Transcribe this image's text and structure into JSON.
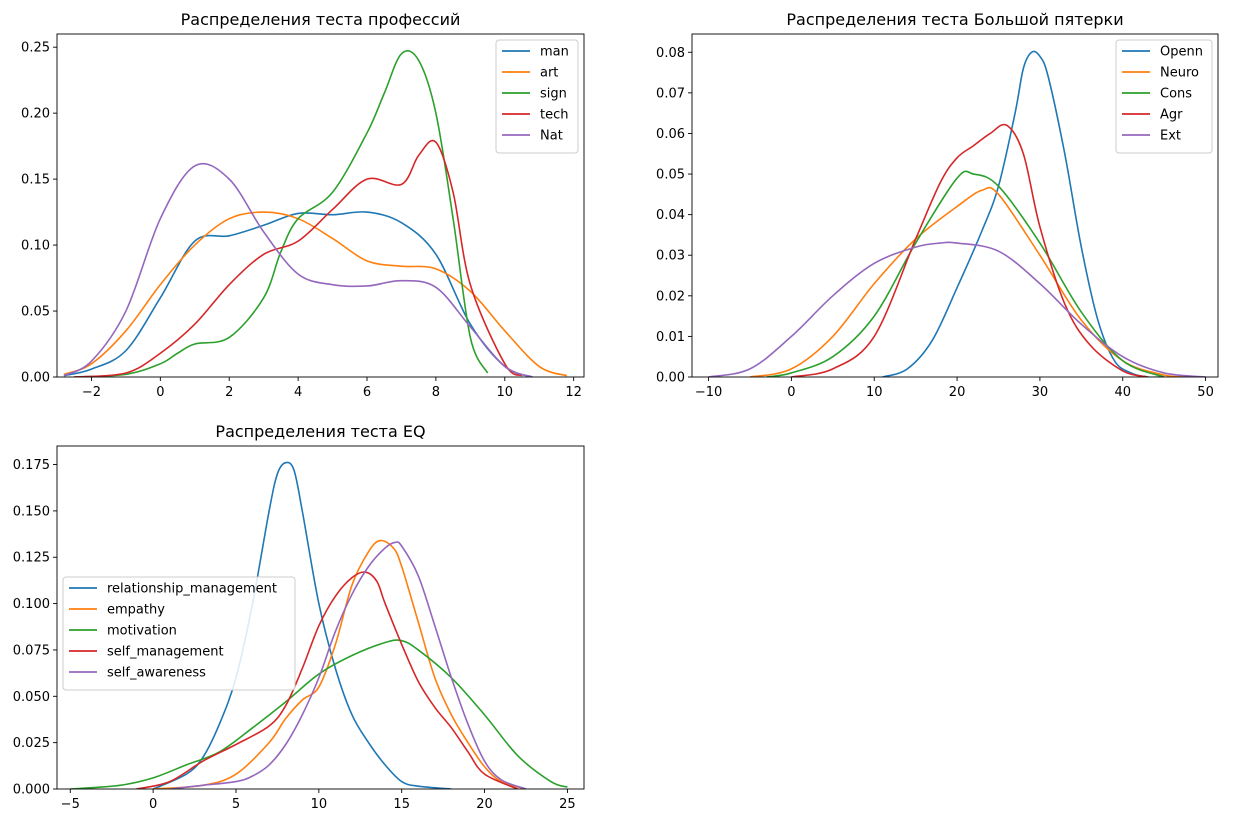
{
  "chart_data": [
    {
      "type": "line",
      "title": "Распределения теста профессий",
      "xlabel": "",
      "ylabel": "",
      "xlim": [
        -3.0,
        12.3
      ],
      "ylim": [
        0,
        0.26
      ],
      "xticks": [
        -2,
        0,
        2,
        4,
        6,
        8,
        10,
        12
      ],
      "yticks": [
        0.0,
        0.05,
        0.1,
        0.15,
        0.2,
        0.25
      ],
      "ytick_labels": [
        "0.00",
        "0.05",
        "0.10",
        "0.15",
        "0.20",
        "0.25"
      ],
      "xtick_labels": [
        "−2",
        "0",
        "2",
        "4",
        "6",
        "8",
        "10",
        "12"
      ],
      "legend_position": "top-right",
      "grid": false,
      "series": [
        {
          "name": "man",
          "color": "#1f77b4",
          "x": [
            -2.8,
            -2,
            -1,
            0,
            1,
            2,
            3,
            4,
            5,
            6,
            7,
            8,
            9,
            10,
            10.8
          ],
          "y": [
            0.001,
            0.006,
            0.02,
            0.06,
            0.103,
            0.107,
            0.115,
            0.124,
            0.123,
            0.125,
            0.117,
            0.093,
            0.04,
            0.008,
            0.0
          ]
        },
        {
          "name": "art",
          "color": "#ff7f0e",
          "x": [
            -2.8,
            -2,
            -1,
            0,
            1,
            2,
            3,
            4,
            5,
            6,
            7,
            8,
            9,
            10,
            11,
            11.8
          ],
          "y": [
            0.002,
            0.01,
            0.035,
            0.07,
            0.1,
            0.12,
            0.125,
            0.12,
            0.105,
            0.088,
            0.084,
            0.082,
            0.065,
            0.035,
            0.008,
            0.001
          ]
        },
        {
          "name": "sign",
          "color": "#2ca02c",
          "x": [
            -2.5,
            -1,
            0,
            0.5,
            1,
            2,
            3,
            3.5,
            4,
            5,
            6,
            6.5,
            7,
            7.5,
            8,
            8.5,
            9,
            9.5
          ],
          "y": [
            0.0,
            0.002,
            0.01,
            0.018,
            0.025,
            0.03,
            0.06,
            0.095,
            0.12,
            0.14,
            0.185,
            0.215,
            0.245,
            0.24,
            0.2,
            0.12,
            0.03,
            0.003
          ]
        },
        {
          "name": "tech",
          "color": "#d62728",
          "x": [
            -2.5,
            -1,
            0,
            1,
            2,
            3,
            4,
            5,
            6,
            7,
            7.5,
            8,
            8.5,
            9,
            10,
            10.5
          ],
          "y": [
            0.0,
            0.003,
            0.018,
            0.04,
            0.07,
            0.093,
            0.103,
            0.127,
            0.15,
            0.146,
            0.168,
            0.178,
            0.14,
            0.07,
            0.01,
            0.001
          ]
        },
        {
          "name": "Nat",
          "color": "#9467bd",
          "x": [
            -2.8,
            -2,
            -1,
            0,
            1,
            2,
            3,
            4,
            5,
            6,
            7,
            8,
            9,
            10,
            10.8
          ],
          "y": [
            0.001,
            0.012,
            0.05,
            0.12,
            0.16,
            0.15,
            0.11,
            0.078,
            0.07,
            0.069,
            0.073,
            0.068,
            0.038,
            0.008,
            0.0
          ]
        }
      ]
    },
    {
      "type": "line",
      "title": "Распределения теста Большой пятерки",
      "xlabel": "",
      "ylabel": "",
      "xlim": [
        -12,
        51.5
      ],
      "ylim": [
        0,
        0.0845
      ],
      "xticks": [
        -10,
        0,
        10,
        20,
        30,
        40,
        50
      ],
      "xtick_labels": [
        "−10",
        "0",
        "10",
        "20",
        "30",
        "40",
        "50"
      ],
      "yticks": [
        0.0,
        0.01,
        0.02,
        0.03,
        0.04,
        0.05,
        0.06,
        0.07,
        0.08
      ],
      "ytick_labels": [
        "0.00",
        "0.01",
        "0.02",
        "0.03",
        "0.04",
        "0.05",
        "0.06",
        "0.07",
        "0.08"
      ],
      "legend_position": "top-right",
      "grid": false,
      "series": [
        {
          "name": "Openn",
          "color": "#1f77b4",
          "x": [
            11,
            14,
            17,
            20,
            23,
            25,
            27,
            28,
            29,
            30,
            31,
            33,
            35,
            37,
            39,
            41,
            43,
            45
          ],
          "y": [
            0.0,
            0.002,
            0.009,
            0.022,
            0.036,
            0.047,
            0.065,
            0.076,
            0.08,
            0.079,
            0.074,
            0.055,
            0.032,
            0.014,
            0.004,
            0.001,
            0.0,
            0.0
          ]
        },
        {
          "name": "Neuro",
          "color": "#ff7f0e",
          "x": [
            -5,
            0,
            5,
            10,
            15,
            20,
            23,
            25,
            30,
            35,
            40,
            45,
            48
          ],
          "y": [
            0.0,
            0.002,
            0.01,
            0.023,
            0.034,
            0.042,
            0.046,
            0.045,
            0.03,
            0.014,
            0.004,
            0.0005,
            0.0
          ]
        },
        {
          "name": "Cons",
          "color": "#2ca02c",
          "x": [
            -3,
            0,
            5,
            10,
            15,
            20,
            22,
            25,
            30,
            35,
            40,
            45
          ],
          "y": [
            0.0,
            0.001,
            0.005,
            0.015,
            0.033,
            0.049,
            0.05,
            0.047,
            0.033,
            0.016,
            0.004,
            0.0
          ]
        },
        {
          "name": "Agr",
          "color": "#d62728",
          "x": [
            0,
            5,
            10,
            15,
            18,
            20,
            22,
            24,
            26,
            28,
            30,
            33,
            36,
            40,
            43
          ],
          "y": [
            0.0,
            0.002,
            0.01,
            0.034,
            0.048,
            0.054,
            0.057,
            0.06,
            0.062,
            0.055,
            0.037,
            0.018,
            0.008,
            0.0015,
            0.0
          ]
        },
        {
          "name": "Ext",
          "color": "#9467bd",
          "x": [
            -10,
            -5,
            0,
            5,
            10,
            15,
            18,
            20,
            25,
            30,
            35,
            40,
            45,
            50
          ],
          "y": [
            0.0,
            0.002,
            0.01,
            0.02,
            0.028,
            0.032,
            0.033,
            0.033,
            0.031,
            0.023,
            0.013,
            0.005,
            0.001,
            0.0
          ]
        }
      ]
    },
    {
      "type": "line",
      "title": "Распределения теста EQ",
      "xlabel": "",
      "ylabel": "",
      "xlim": [
        -5.8,
        26
      ],
      "ylim": [
        0,
        0.185
      ],
      "xticks": [
        -5,
        0,
        5,
        10,
        15,
        20,
        25
      ],
      "xtick_labels": [
        "−5",
        "0",
        "5",
        "10",
        "15",
        "20",
        "25"
      ],
      "yticks": [
        0.0,
        0.025,
        0.05,
        0.075,
        0.1,
        0.125,
        0.15,
        0.175
      ],
      "ytick_labels": [
        "0.000",
        "0.025",
        "0.050",
        "0.075",
        "0.100",
        "0.125",
        "0.150",
        "0.175"
      ],
      "legend_position": "center-left",
      "grid": false,
      "series": [
        {
          "name": "relationship_management",
          "color": "#1f77b4",
          "x": [
            0,
            2,
            3,
            4,
            5,
            6,
            7,
            7.5,
            8,
            8.5,
            9,
            10,
            11,
            12,
            13,
            14,
            15,
            16,
            18
          ],
          "y": [
            0.0,
            0.008,
            0.017,
            0.035,
            0.06,
            0.1,
            0.15,
            0.17,
            0.176,
            0.172,
            0.15,
            0.1,
            0.065,
            0.04,
            0.025,
            0.013,
            0.004,
            0.0015,
            0.0
          ]
        },
        {
          "name": "empathy",
          "color": "#ff7f0e",
          "x": [
            0,
            3,
            5,
            7,
            8,
            9,
            10,
            11,
            12,
            13,
            13.7,
            14.5,
            15,
            16,
            17,
            18,
            19,
            20,
            21,
            22.5
          ],
          "y": [
            0.0,
            0.002,
            0.008,
            0.025,
            0.038,
            0.048,
            0.055,
            0.078,
            0.11,
            0.128,
            0.134,
            0.13,
            0.12,
            0.09,
            0.06,
            0.04,
            0.025,
            0.012,
            0.004,
            0.0
          ]
        },
        {
          "name": "motivation",
          "color": "#2ca02c",
          "x": [
            -5,
            -2,
            0,
            2,
            4,
            6,
            8,
            10,
            12,
            14,
            15,
            16,
            18,
            20,
            22,
            24,
            25
          ],
          "y": [
            0.0,
            0.002,
            0.006,
            0.013,
            0.02,
            0.033,
            0.047,
            0.062,
            0.072,
            0.079,
            0.08,
            0.075,
            0.06,
            0.04,
            0.018,
            0.004,
            0.001
          ]
        },
        {
          "name": "self_management",
          "color": "#d62728",
          "x": [
            -1,
            1,
            3,
            5,
            7,
            8,
            9,
            10,
            11,
            12,
            12.8,
            13.5,
            14,
            15,
            16,
            17,
            18,
            19,
            20,
            22
          ],
          "y": [
            0.0,
            0.004,
            0.015,
            0.024,
            0.034,
            0.045,
            0.065,
            0.088,
            0.104,
            0.114,
            0.117,
            0.112,
            0.1,
            0.078,
            0.058,
            0.044,
            0.033,
            0.02,
            0.008,
            0.0
          ]
        },
        {
          "name": "self_awareness",
          "color": "#9467bd",
          "x": [
            1,
            3,
            5,
            6,
            7,
            8,
            9,
            10,
            11,
            12,
            13,
            14,
            14.6,
            15,
            16,
            17,
            18,
            19,
            20,
            21,
            22.5
          ],
          "y": [
            0.0,
            0.002,
            0.004,
            0.007,
            0.013,
            0.024,
            0.04,
            0.06,
            0.085,
            0.105,
            0.12,
            0.13,
            0.133,
            0.131,
            0.115,
            0.088,
            0.06,
            0.035,
            0.015,
            0.005,
            0.0
          ]
        }
      ]
    }
  ]
}
